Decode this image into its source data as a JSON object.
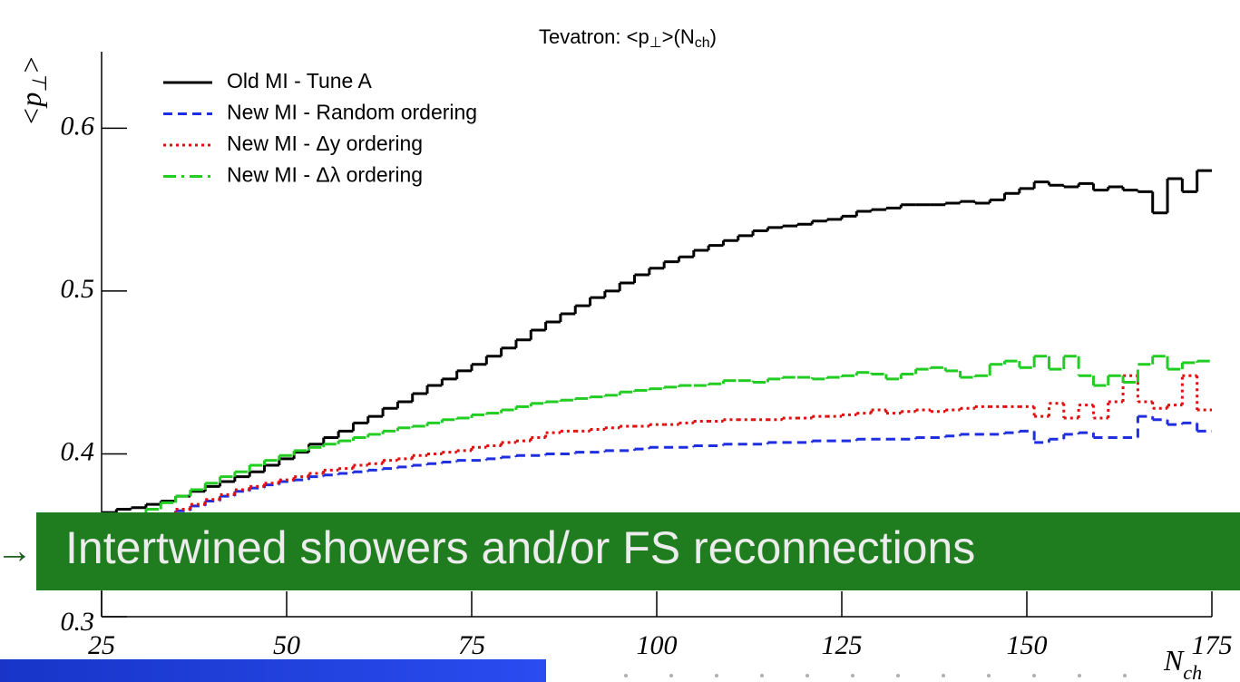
{
  "chart_data": {
    "type": "histogram",
    "title_parts": [
      "Tevatron: <p",
      "⊥",
      ">(N",
      "ch",
      ")"
    ],
    "ylabel_parts": [
      "<p",
      "⊥",
      ">"
    ],
    "xlabel_parts": [
      "N",
      "ch"
    ],
    "annotation_arrow": "→",
    "annotation": "Intertwined showers and/or FS reconnections",
    "bins": [
      25,
      27,
      29,
      31,
      33,
      35,
      37,
      39,
      41,
      43,
      45,
      47,
      49,
      51,
      53,
      55,
      57,
      59,
      61,
      63,
      65,
      67,
      69,
      71,
      73,
      75,
      77,
      79,
      81,
      83,
      85,
      87,
      89,
      91,
      93,
      95,
      97,
      99,
      101,
      103,
      105,
      107,
      109,
      111,
      113,
      115,
      117,
      119,
      121,
      123,
      125,
      127,
      129,
      131,
      133,
      135,
      137,
      139,
      141,
      143,
      145,
      147,
      149,
      151,
      153,
      155,
      157,
      159,
      161,
      163,
      165,
      167,
      169,
      171,
      173,
      175
    ],
    "series": [
      {
        "name": "Old MI - Tune A",
        "color": "#000000",
        "dash": "none",
        "values": [
          0.364,
          0.366,
          0.367,
          0.369,
          0.371,
          0.374,
          0.377,
          0.38,
          0.383,
          0.386,
          0.389,
          0.393,
          0.397,
          0.401,
          0.406,
          0.41,
          0.414,
          0.419,
          0.423,
          0.428,
          0.432,
          0.437,
          0.442,
          0.446,
          0.451,
          0.455,
          0.46,
          0.465,
          0.47,
          0.476,
          0.481,
          0.486,
          0.491,
          0.496,
          0.5,
          0.505,
          0.51,
          0.514,
          0.518,
          0.521,
          0.525,
          0.528,
          0.531,
          0.534,
          0.537,
          0.539,
          0.54,
          0.541,
          0.543,
          0.544,
          0.546,
          0.549,
          0.55,
          0.551,
          0.553,
          0.553,
          0.553,
          0.554,
          0.555,
          0.554,
          0.556,
          0.56,
          0.563,
          0.567,
          0.565,
          0.564,
          0.566,
          0.562,
          0.564,
          0.562,
          0.561,
          0.548,
          0.569,
          0.561,
          0.574
        ]
      },
      {
        "name": "New MI - Random ordering",
        "color": "#1f2fe0",
        "dash": "10,6",
        "values": [
          0.35,
          0.353,
          0.356,
          0.359,
          0.362,
          0.365,
          0.368,
          0.371,
          0.374,
          0.377,
          0.379,
          0.381,
          0.383,
          0.384,
          0.386,
          0.387,
          0.388,
          0.389,
          0.39,
          0.391,
          0.392,
          0.393,
          0.394,
          0.395,
          0.396,
          0.396,
          0.397,
          0.398,
          0.399,
          0.399,
          0.4,
          0.4,
          0.401,
          0.401,
          0.402,
          0.402,
          0.403,
          0.404,
          0.404,
          0.404,
          0.405,
          0.405,
          0.406,
          0.406,
          0.406,
          0.407,
          0.407,
          0.407,
          0.408,
          0.408,
          0.408,
          0.409,
          0.409,
          0.409,
          0.409,
          0.41,
          0.41,
          0.411,
          0.412,
          0.412,
          0.412,
          0.413,
          0.414,
          0.407,
          0.409,
          0.412,
          0.413,
          0.41,
          0.41,
          0.41,
          0.423,
          0.421,
          0.418,
          0.419,
          0.414
        ]
      },
      {
        "name": "New MI - Δy ordering",
        "color": "#e01010",
        "dash": "3,4",
        "values": [
          0.35,
          0.354,
          0.357,
          0.36,
          0.363,
          0.366,
          0.369,
          0.372,
          0.375,
          0.378,
          0.38,
          0.382,
          0.384,
          0.386,
          0.388,
          0.39,
          0.391,
          0.393,
          0.394,
          0.396,
          0.397,
          0.399,
          0.4,
          0.401,
          0.402,
          0.404,
          0.405,
          0.407,
          0.408,
          0.41,
          0.413,
          0.414,
          0.414,
          0.415,
          0.416,
          0.417,
          0.417,
          0.418,
          0.418,
          0.419,
          0.42,
          0.42,
          0.421,
          0.421,
          0.421,
          0.421,
          0.422,
          0.422,
          0.423,
          0.423,
          0.424,
          0.425,
          0.427,
          0.425,
          0.426,
          0.427,
          0.426,
          0.427,
          0.428,
          0.429,
          0.429,
          0.429,
          0.429,
          0.423,
          0.431,
          0.422,
          0.43,
          0.422,
          0.432,
          0.448,
          0.432,
          0.428,
          0.43,
          0.448,
          0.427
        ]
      },
      {
        "name": "New MI - Δλ ordering",
        "color": "#22cc22",
        "dash": "14,6,3,6",
        "values": [
          0.352,
          0.357,
          0.362,
          0.366,
          0.37,
          0.374,
          0.378,
          0.382,
          0.386,
          0.389,
          0.393,
          0.396,
          0.399,
          0.402,
          0.404,
          0.406,
          0.408,
          0.41,
          0.412,
          0.414,
          0.416,
          0.417,
          0.419,
          0.421,
          0.422,
          0.424,
          0.425,
          0.427,
          0.429,
          0.431,
          0.432,
          0.433,
          0.434,
          0.435,
          0.436,
          0.438,
          0.439,
          0.44,
          0.441,
          0.442,
          0.442,
          0.443,
          0.445,
          0.445,
          0.444,
          0.446,
          0.447,
          0.447,
          0.446,
          0.447,
          0.448,
          0.45,
          0.449,
          0.446,
          0.449,
          0.452,
          0.453,
          0.451,
          0.447,
          0.448,
          0.455,
          0.457,
          0.453,
          0.46,
          0.452,
          0.46,
          0.448,
          0.442,
          0.448,
          0.444,
          0.455,
          0.46,
          0.452,
          0.456,
          0.457
        ]
      }
    ],
    "xlim": [
      25,
      175
    ],
    "xticks": [
      25,
      50,
      75,
      100,
      125,
      150,
      175
    ],
    "ylim": [
      0.3,
      0.647
    ],
    "yticks": [
      0.3,
      0.4,
      0.5,
      0.6
    ]
  }
}
